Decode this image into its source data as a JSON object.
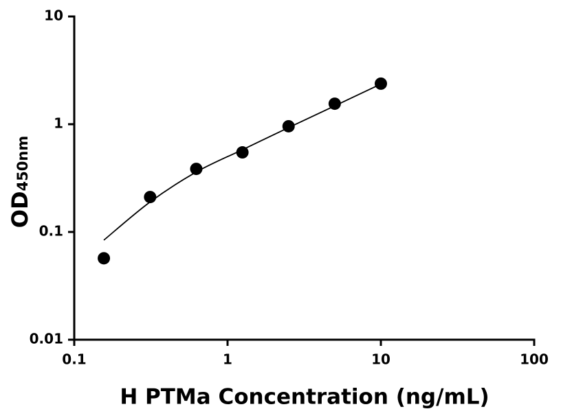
{
  "chart_data": {
    "type": "scatter",
    "xlabel": "H PTMa Concentration (ng/mL)",
    "ylabel": {
      "text": "OD",
      "subscript": "450nm"
    },
    "x": [
      0.156,
      0.3125,
      0.625,
      1.25,
      2.5,
      5,
      10
    ],
    "values": [
      0.057,
      0.211,
      0.385,
      0.548,
      0.957,
      1.55,
      2.38
    ],
    "color": "#000000",
    "fit": {
      "x": [
        0.156,
        0.3125,
        0.625,
        1.25,
        2.5,
        5,
        10
      ],
      "values": [
        0.084,
        0.19,
        0.36,
        0.58,
        0.93,
        1.48,
        2.36
      ],
      "color": "#000000"
    },
    "xscale": "log",
    "yscale": "log",
    "xlim": [
      0.1,
      100
    ],
    "ylim": [
      0.01,
      10
    ],
    "xticks": [
      0.1,
      1,
      10,
      100
    ],
    "yticks": [
      0.01,
      0.1,
      1,
      10
    ]
  }
}
